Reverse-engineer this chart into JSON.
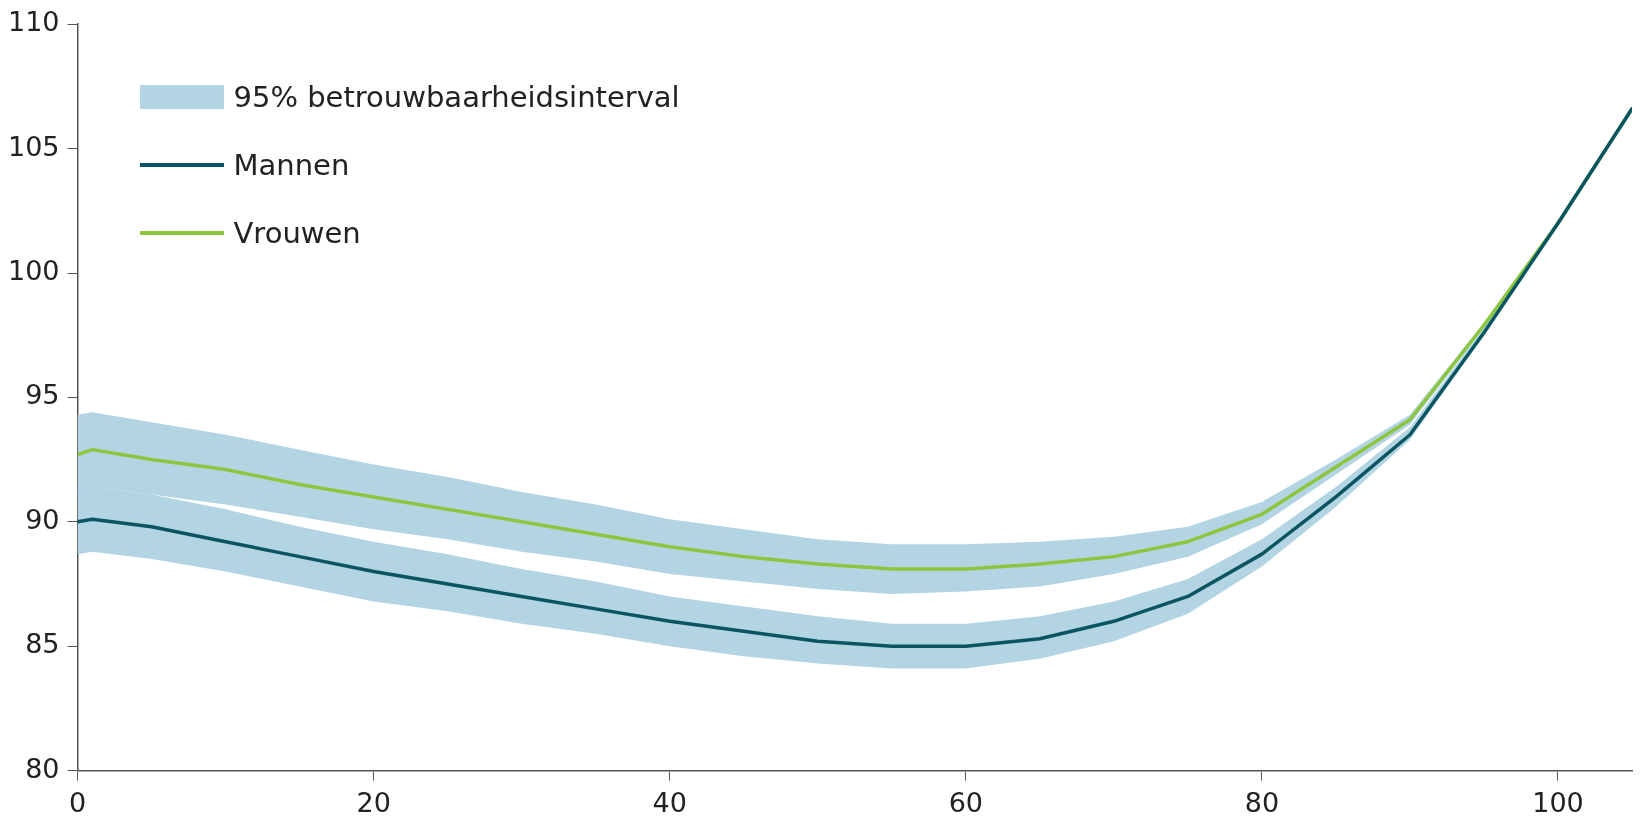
{
  "chart_data": {
    "type": "line",
    "xlim": [
      0,
      105
    ],
    "xticks": [
      0,
      20,
      40,
      60,
      80,
      100
    ],
    "ylim": [
      80,
      110
    ],
    "yticks": [
      80,
      85,
      90,
      95,
      100,
      105,
      110
    ],
    "grid": false,
    "legend": "top left",
    "marker": "none",
    "line_style": "solid",
    "annotations": [
      "95% betrouwbaarheidsinterval"
    ],
    "x": [
      0,
      1,
      5,
      10,
      15,
      20,
      25,
      30,
      35,
      40,
      45,
      50,
      55,
      60,
      65,
      70,
      75,
      80,
      85,
      90,
      95,
      100,
      105
    ],
    "series": [
      {
        "name": "Mannen",
        "color": "#0b5563",
        "values": [
          90.0,
          90.1,
          89.8,
          89.2,
          88.6,
          88.0,
          87.5,
          87.0,
          86.5,
          86.0,
          85.6,
          85.2,
          85.0,
          85.0,
          85.3,
          86.0,
          87.0,
          88.7,
          91.0,
          93.5,
          97.6,
          102.0,
          106.6
        ],
        "lower": [
          88.7,
          88.8,
          88.5,
          88.0,
          87.4,
          86.8,
          86.4,
          85.9,
          85.5,
          85.0,
          84.6,
          84.3,
          84.1,
          84.1,
          84.5,
          85.2,
          86.3,
          88.2,
          90.6,
          93.3,
          97.5,
          102.0,
          106.6
        ],
        "upper": [
          91.3,
          91.4,
          91.1,
          90.5,
          89.8,
          89.2,
          88.7,
          88.1,
          87.6,
          87.0,
          86.6,
          86.2,
          85.9,
          85.9,
          86.2,
          86.8,
          87.7,
          89.3,
          91.4,
          93.8,
          97.8,
          102.1,
          106.6
        ]
      },
      {
        "name": "Vrouwen",
        "color": "#8cc63f",
        "values": [
          92.7,
          92.9,
          92.5,
          92.1,
          91.5,
          91.0,
          90.5,
          90.0,
          89.5,
          89.0,
          88.6,
          88.3,
          88.1,
          88.1,
          88.3,
          88.6,
          89.2,
          90.3,
          92.2,
          94.1,
          97.9,
          102.0,
          106.6
        ],
        "lower": [
          91.1,
          91.4,
          91.1,
          90.7,
          90.2,
          89.7,
          89.3,
          88.8,
          88.4,
          87.9,
          87.6,
          87.3,
          87.1,
          87.2,
          87.4,
          87.9,
          88.6,
          89.9,
          91.9,
          93.9,
          97.8,
          102.0,
          106.6
        ],
        "upper": [
          94.3,
          94.4,
          94.0,
          93.5,
          92.9,
          92.3,
          91.8,
          91.2,
          90.7,
          90.1,
          89.7,
          89.3,
          89.1,
          89.1,
          89.2,
          89.4,
          89.8,
          90.8,
          92.5,
          94.3,
          98.0,
          102.1,
          106.6
        ]
      }
    ]
  }
}
